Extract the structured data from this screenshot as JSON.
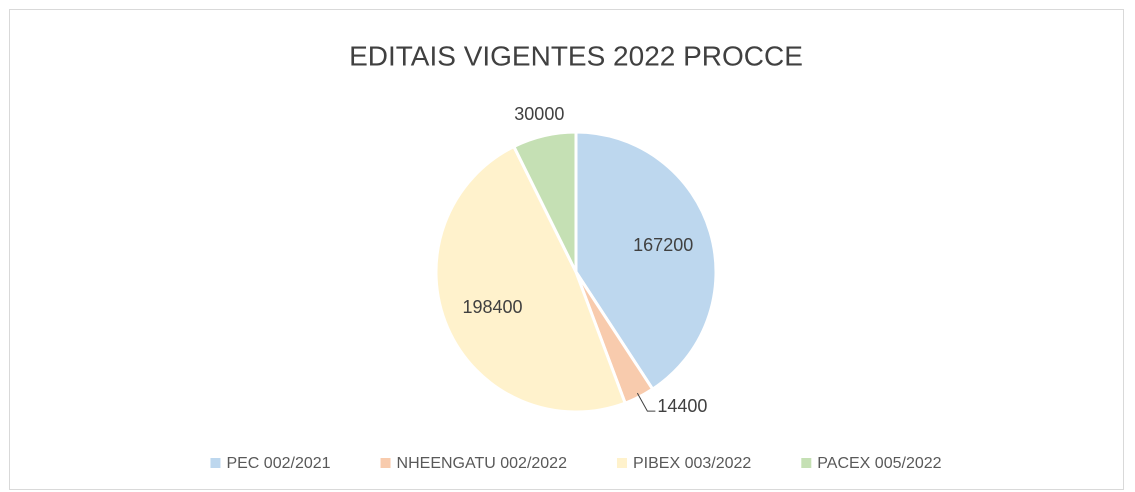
{
  "chart_data": {
    "type": "pie",
    "title": "EDITAIS VIGENTES 2022 PROCCE",
    "categories": [
      "PEC 002/2021",
      "NHEENGATU 002/2022",
      "PIBEX 003/2022",
      "PACEX 005/2022"
    ],
    "values": [
      167200,
      14400,
      198400,
      30000
    ],
    "colors": [
      "#bdd7ee",
      "#f8cbad",
      "#fff2cc",
      "#c5e0b4"
    ],
    "legend": "bottom"
  }
}
